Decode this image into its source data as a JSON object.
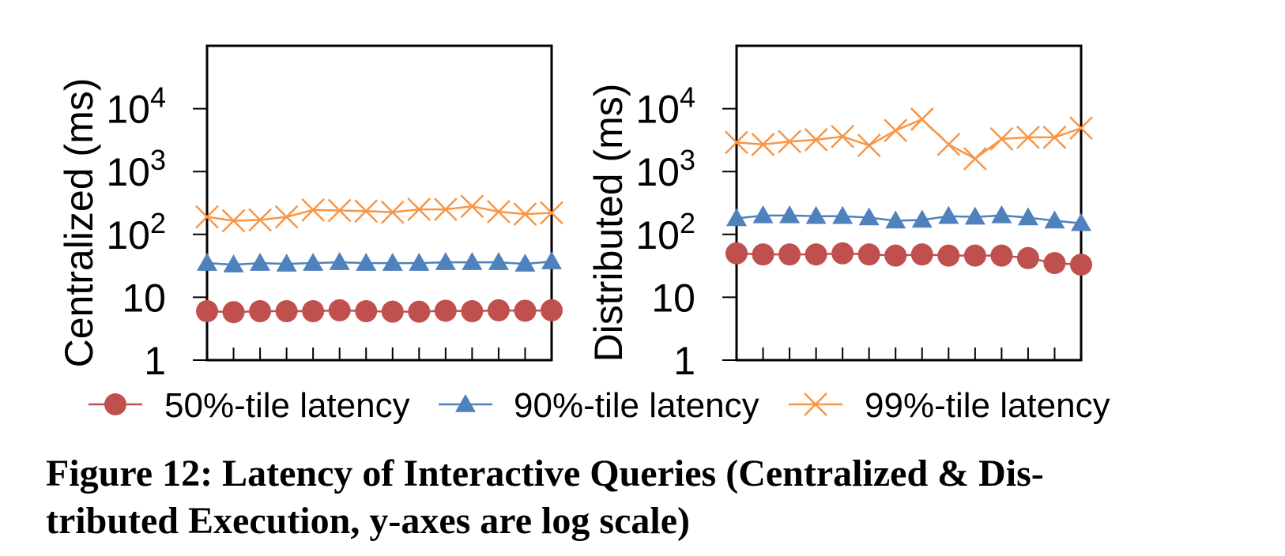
{
  "chart_data": [
    {
      "type": "line",
      "ylabel": "Centralized (ms)",
      "xlabel": "",
      "yscale": "log",
      "ylim": [
        1,
        100000
      ],
      "y_ticks": [
        {
          "value": 1,
          "label": "1"
        },
        {
          "value": 10,
          "label": "10"
        },
        {
          "value": 100,
          "base": "10",
          "exp": "2"
        },
        {
          "value": 1000,
          "base": "10",
          "exp": "3"
        },
        {
          "value": 10000,
          "base": "10",
          "exp": "4"
        }
      ],
      "x_count": 14,
      "grid": false,
      "series": [
        {
          "name": "50%-tile latency",
          "marker": "circle",
          "color": "#c0504d",
          "values": [
            6,
            5.8,
            6,
            6,
            6,
            6.2,
            6,
            5.9,
            5.9,
            6.1,
            6,
            6.2,
            6.1,
            6.2
          ]
        },
        {
          "name": "90%-tile latency",
          "marker": "triangle",
          "color": "#4f81bd",
          "values": [
            35,
            33,
            35,
            34,
            35,
            36,
            35,
            35,
            35,
            36,
            36,
            36,
            34,
            37
          ]
        },
        {
          "name": "99%-tile latency",
          "marker": "x",
          "color": "#f79646",
          "values": [
            190,
            165,
            170,
            190,
            245,
            240,
            235,
            225,
            250,
            250,
            280,
            230,
            210,
            220
          ]
        }
      ]
    },
    {
      "type": "line",
      "ylabel": "Distributed (ms)",
      "xlabel": "",
      "yscale": "log",
      "ylim": [
        1,
        100000
      ],
      "y_ticks": [
        {
          "value": 1,
          "label": "1"
        },
        {
          "value": 10,
          "label": "10"
        },
        {
          "value": 100,
          "base": "10",
          "exp": "2"
        },
        {
          "value": 1000,
          "base": "10",
          "exp": "3"
        },
        {
          "value": 10000,
          "base": "10",
          "exp": "4"
        }
      ],
      "x_count": 14,
      "grid": false,
      "series": [
        {
          "name": "50%-tile latency",
          "marker": "circle",
          "color": "#c0504d",
          "values": [
            50,
            48,
            48,
            48,
            50,
            48,
            46,
            48,
            46,
            46,
            46,
            42,
            35,
            33
          ]
        },
        {
          "name": "90%-tile latency",
          "marker": "triangle",
          "color": "#4f81bd",
          "values": [
            180,
            200,
            200,
            195,
            195,
            185,
            165,
            170,
            195,
            190,
            200,
            185,
            165,
            150
          ]
        },
        {
          "name": "99%-tile latency",
          "marker": "x",
          "color": "#f79646",
          "values": [
            2900,
            2700,
            3000,
            3200,
            3600,
            2600,
            4500,
            6800,
            2700,
            1600,
            3300,
            3500,
            3500,
            4900
          ]
        }
      ]
    }
  ],
  "legend": [
    {
      "label": "50%-tile latency",
      "marker": "circle",
      "color": "#c0504d"
    },
    {
      "label": "90%-tile latency",
      "marker": "triangle",
      "color": "#4f81bd"
    },
    {
      "label": "99%-tile latency",
      "marker": "x",
      "color": "#f79646"
    }
  ],
  "caption": {
    "line1": "Figure 12: Latency of Interactive Queries (Centralized & Dis-",
    "line2": "tributed Execution, y-axes are log scale)"
  }
}
